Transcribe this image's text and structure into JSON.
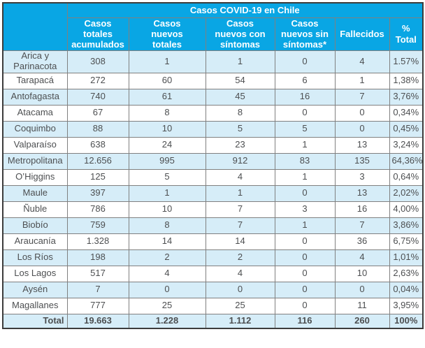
{
  "colors": {
    "header_background": "#09a6e4",
    "header_text": "#ffffff",
    "row_alternate": "#d6edf8",
    "row_plain": "#ffffff",
    "cell_text": "#4d4f51",
    "grid_border": "#808080",
    "outer_border": "#3c3c3c"
  },
  "chart_data": {
    "type": "table",
    "title": "Casos COVID-19 en Chile",
    "corner_label": "",
    "columns": [
      "Casos totales acumulados",
      "Casos nuevos totales",
      "Casos nuevos con síntomas",
      "Casos nuevos sin síntomas*",
      "Fallecidos",
      "% Total"
    ],
    "rows": [
      {
        "region": "Arica y Parinacota",
        "values": [
          "308",
          "1",
          "1",
          "0",
          "4",
          "1.57%"
        ]
      },
      {
        "region": "Tarapacá",
        "values": [
          "272",
          "60",
          "54",
          "6",
          "1",
          "1,38%"
        ]
      },
      {
        "region": "Antofagasta",
        "values": [
          "740",
          "61",
          "45",
          "16",
          "7",
          "3,76%"
        ]
      },
      {
        "region": "Atacama",
        "values": [
          "67",
          "8",
          "8",
          "0",
          "0",
          "0,34%"
        ]
      },
      {
        "region": "Coquimbo",
        "values": [
          "88",
          "10",
          "5",
          "5",
          "0",
          "0,45%"
        ]
      },
      {
        "region": "Valparaíso",
        "values": [
          "638",
          "24",
          "23",
          "1",
          "13",
          "3,24%"
        ]
      },
      {
        "region": "Metropolitana",
        "values": [
          "12.656",
          "995",
          "912",
          "83",
          "135",
          "64,36%"
        ]
      },
      {
        "region": "O’Higgins",
        "values": [
          "125",
          "5",
          "4",
          "1",
          "3",
          "0,64%"
        ]
      },
      {
        "region": "Maule",
        "values": [
          "397",
          "1",
          "1",
          "0",
          "13",
          "2,02%"
        ]
      },
      {
        "region": "Ñuble",
        "values": [
          "786",
          "10",
          "7",
          "3",
          "16",
          "4,00%"
        ]
      },
      {
        "region": "Biobío",
        "values": [
          "759",
          "8",
          "7",
          "1",
          "7",
          "3,86%"
        ]
      },
      {
        "region": "Araucanía",
        "values": [
          "1.328",
          "14",
          "14",
          "0",
          "36",
          "6,75%"
        ]
      },
      {
        "region": "Los Ríos",
        "values": [
          "198",
          "2",
          "2",
          "0",
          "4",
          "1,01%"
        ]
      },
      {
        "region": "Los Lagos",
        "values": [
          "517",
          "4",
          "4",
          "0",
          "10",
          "2,63%"
        ]
      },
      {
        "region": "Aysén",
        "values": [
          "7",
          "0",
          "0",
          "0",
          "0",
          "0,04%"
        ]
      },
      {
        "region": "Magallanes",
        "values": [
          "777",
          "25",
          "25",
          "0",
          "11",
          "3,95%"
        ]
      }
    ],
    "total": {
      "label": "Total",
      "values": [
        "19.663",
        "1.228",
        "1.112",
        "116",
        "260",
        "100%"
      ]
    }
  }
}
